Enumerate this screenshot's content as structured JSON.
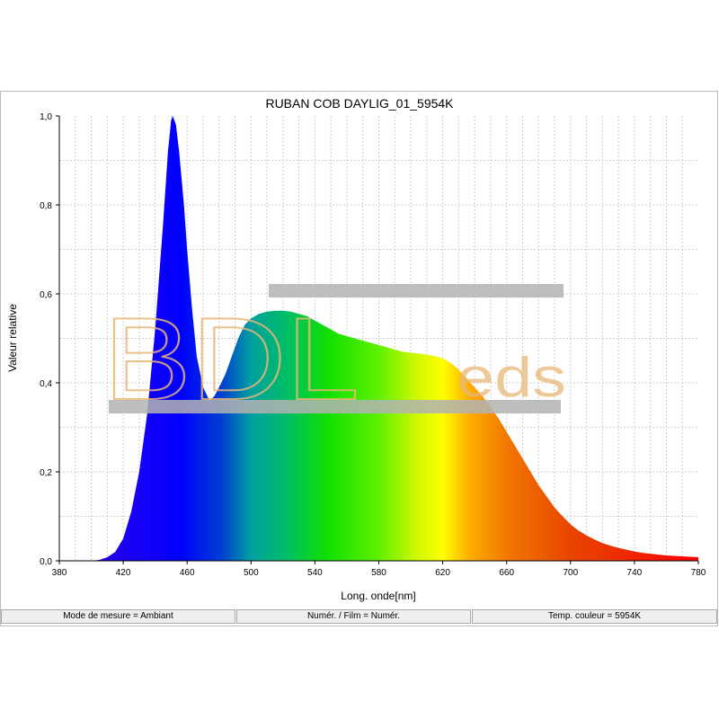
{
  "chart_data": {
    "type": "area",
    "title": "RUBAN COB DAYLIG_01_5954K",
    "xlabel": "Long. onde[nm]",
    "ylabel": "Valeur relative",
    "xlim": [
      380,
      780
    ],
    "ylim": [
      0,
      1
    ],
    "x_ticks": [
      "380",
      "420",
      "460",
      "500",
      "540",
      "580",
      "620",
      "660",
      "700",
      "740",
      "780"
    ],
    "y_ticks": [
      "0,0",
      "0,2",
      "0,4",
      "0,6",
      "0,8",
      "1,0"
    ],
    "grid": true,
    "fill": "visible-spectrum gradient",
    "series": [
      {
        "points": [
          [
            380,
            0.0
          ],
          [
            400,
            0.0
          ],
          [
            405,
            0.002
          ],
          [
            410,
            0.008
          ],
          [
            415,
            0.02
          ],
          [
            420,
            0.05
          ],
          [
            425,
            0.11
          ],
          [
            430,
            0.2
          ],
          [
            435,
            0.33
          ],
          [
            440,
            0.52
          ],
          [
            445,
            0.76
          ],
          [
            448,
            0.92
          ],
          [
            450,
            0.99
          ],
          [
            451,
            1.0
          ],
          [
            453,
            0.98
          ],
          [
            455,
            0.92
          ],
          [
            458,
            0.8
          ],
          [
            460,
            0.7
          ],
          [
            463,
            0.57
          ],
          [
            466,
            0.46
          ],
          [
            470,
            0.39
          ],
          [
            474,
            0.36
          ],
          [
            477,
            0.37
          ],
          [
            480,
            0.39
          ],
          [
            484,
            0.42
          ],
          [
            488,
            0.46
          ],
          [
            492,
            0.5
          ],
          [
            496,
            0.53
          ],
          [
            500,
            0.545
          ],
          [
            505,
            0.555
          ],
          [
            510,
            0.56
          ],
          [
            515,
            0.562
          ],
          [
            520,
            0.562
          ],
          [
            525,
            0.56
          ],
          [
            530,
            0.555
          ],
          [
            535,
            0.55
          ],
          [
            540,
            0.54
          ],
          [
            545,
            0.53
          ],
          [
            550,
            0.52
          ],
          [
            555,
            0.51
          ],
          [
            560,
            0.505
          ],
          [
            565,
            0.5
          ],
          [
            570,
            0.495
          ],
          [
            575,
            0.49
          ],
          [
            580,
            0.485
          ],
          [
            585,
            0.48
          ],
          [
            590,
            0.475
          ],
          [
            595,
            0.47
          ],
          [
            600,
            0.468
          ],
          [
            605,
            0.466
          ],
          [
            610,
            0.463
          ],
          [
            615,
            0.46
          ],
          [
            620,
            0.455
          ],
          [
            625,
            0.445
          ],
          [
            630,
            0.43
          ],
          [
            635,
            0.41
          ],
          [
            640,
            0.39
          ],
          [
            645,
            0.37
          ],
          [
            650,
            0.345
          ],
          [
            655,
            0.32
          ],
          [
            660,
            0.29
          ],
          [
            665,
            0.26
          ],
          [
            670,
            0.23
          ],
          [
            675,
            0.2
          ],
          [
            680,
            0.17
          ],
          [
            685,
            0.145
          ],
          [
            690,
            0.12
          ],
          [
            695,
            0.1
          ],
          [
            700,
            0.082
          ],
          [
            705,
            0.068
          ],
          [
            710,
            0.057
          ],
          [
            715,
            0.048
          ],
          [
            720,
            0.04
          ],
          [
            725,
            0.034
          ],
          [
            730,
            0.029
          ],
          [
            735,
            0.025
          ],
          [
            740,
            0.021
          ],
          [
            745,
            0.018
          ],
          [
            750,
            0.016
          ],
          [
            755,
            0.014
          ],
          [
            760,
            0.012
          ],
          [
            765,
            0.011
          ],
          [
            770,
            0.01
          ],
          [
            775,
            0.009
          ],
          [
            780,
            0.008
          ]
        ]
      }
    ]
  },
  "status_bar": {
    "measure_mode": "Mode de mesure = Ambiant",
    "film": "Numér. / Film = Numér.",
    "color_temp": "Temp. couleur = 5954K"
  },
  "watermark": {
    "brand": "BDL",
    "suffix": "eds"
  },
  "colors": {
    "grid": "#cfcfcf",
    "watermark": "#e8b778",
    "bars": "#b3b3b3"
  }
}
